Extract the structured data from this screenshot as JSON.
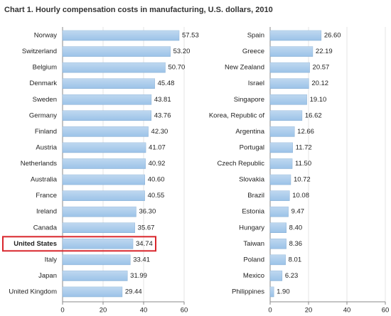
{
  "title": "Chart 1. Hourly compensation costs in manufacturing, U.S. dollars, 2010",
  "chart_data": [
    {
      "type": "hbar",
      "color": "#9cc3e8",
      "grid": true,
      "highlight_index": 13,
      "highlight_color": "#d9262c",
      "categories": [
        "Norway",
        "Switzerland",
        "Belgium",
        "Denmark",
        "Sweden",
        "Germany",
        "Finland",
        "Austria",
        "Netherlands",
        "Australia",
        "France",
        "Ireland",
        "Canada",
        "United States",
        "Italy",
        "Japan",
        "United Kingdom"
      ],
      "values": [
        57.53,
        53.2,
        50.7,
        45.48,
        43.81,
        43.76,
        42.3,
        41.07,
        40.92,
        40.6,
        40.55,
        36.3,
        35.67,
        34.74,
        33.41,
        31.99,
        29.44
      ],
      "value_labels": [
        "57.53",
        "53.20",
        "50.70",
        "45.48",
        "43.81",
        "43.76",
        "42.30",
        "41.07",
        "40.92",
        "40.60",
        "40.55",
        "36.30",
        "35.67",
        "34.74",
        "33.41",
        "31.99",
        "29.44"
      ],
      "xlim": [
        0,
        60
      ],
      "xticks": [
        0,
        20,
        40,
        60
      ]
    },
    {
      "type": "hbar",
      "color": "#9cc3e8",
      "grid": true,
      "categories": [
        "Spain",
        "Greece",
        "New Zealand",
        "Israel",
        "Singapore",
        "Korea, Republic of",
        "Argentina",
        "Portugal",
        "Czech Republic",
        "Slovakia",
        "Brazil",
        "Estonia",
        "Hungary",
        "Taiwan",
        "Poland",
        "Mexico",
        "Philippines"
      ],
      "values": [
        26.6,
        22.19,
        20.57,
        20.12,
        19.1,
        16.62,
        12.66,
        11.72,
        11.5,
        10.72,
        10.08,
        9.47,
        8.4,
        8.36,
        8.01,
        6.23,
        1.9
      ],
      "value_labels": [
        "26.60",
        "22.19",
        "20.57",
        "20.12",
        "19.10",
        "16.62",
        "12.66",
        "11.72",
        "11.50",
        "10.72",
        "10.08",
        "9.47",
        "8.40",
        "8.36",
        "8.01",
        "6.23",
        "1.90"
      ],
      "xlim": [
        0,
        60
      ],
      "xticks": [
        0,
        20,
        40,
        60
      ]
    }
  ]
}
